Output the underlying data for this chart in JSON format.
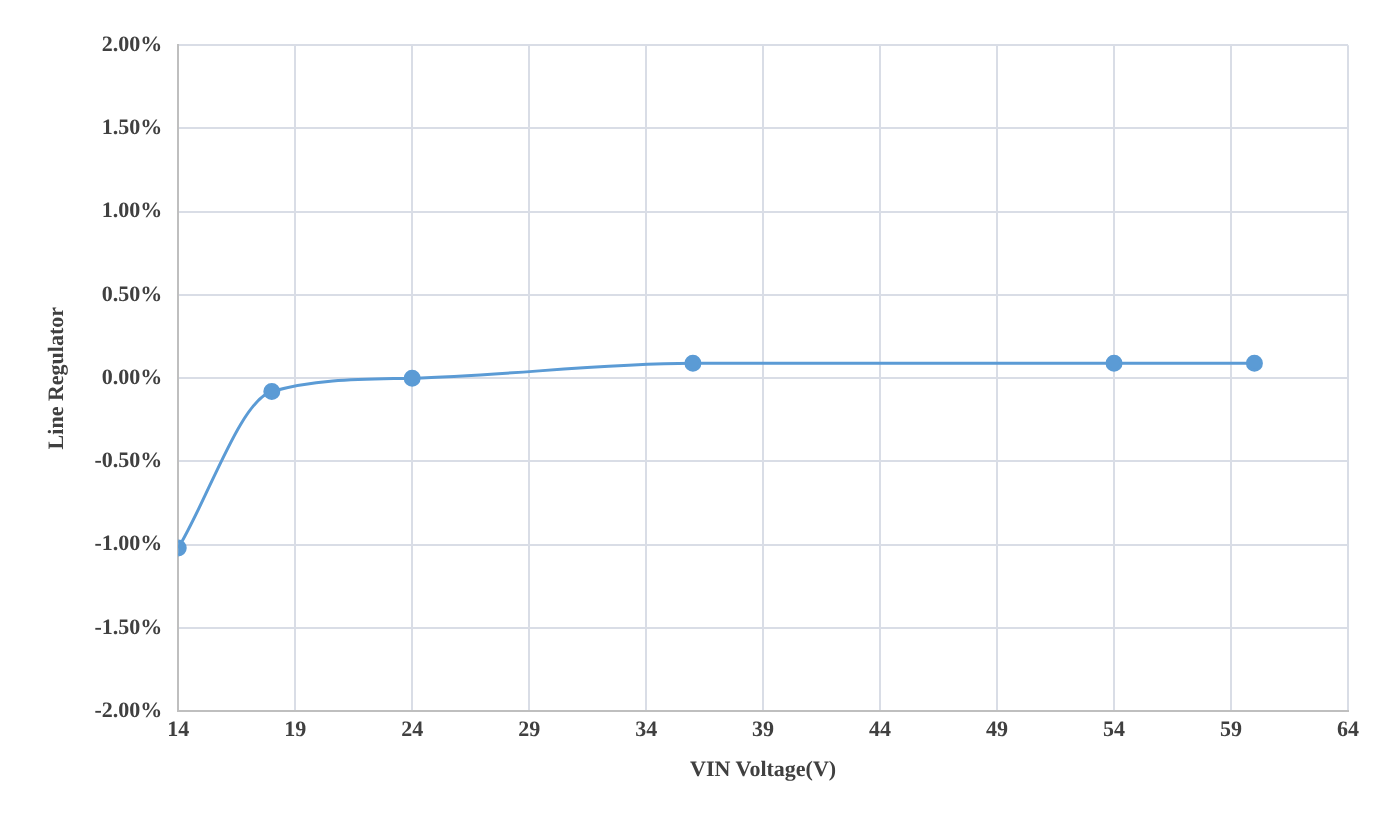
{
  "chart_data": {
    "type": "line",
    "xlabel": "VIN Voltage(V)",
    "ylabel": "Line Regulator",
    "series": [
      {
        "color": "#5b9bd5",
        "x": [
          14,
          18,
          24,
          36,
          54,
          60
        ],
        "values": [
          -1.02,
          -0.08,
          0.0,
          0.09,
          0.09,
          0.09
        ]
      }
    ],
    "xlim": [
      14,
      64
    ],
    "xticks": [
      14,
      19,
      24,
      29,
      34,
      39,
      44,
      49,
      54,
      59,
      64
    ],
    "ylim": [
      -2,
      2
    ],
    "yticks": [
      {
        "value": -2,
        "label": "-2.00%"
      },
      {
        "value": -1.5,
        "label": "-1.50%"
      },
      {
        "value": -1,
        "label": "-1.00%"
      },
      {
        "value": -0.5,
        "label": "-0.50%"
      },
      {
        "value": 0,
        "label": "0.00%"
      },
      {
        "value": 0.5,
        "label": "0.50%"
      },
      {
        "value": 1,
        "label": "1.00%"
      },
      {
        "value": 1.5,
        "label": "1.50%"
      },
      {
        "value": 2,
        "label": "2.00%"
      }
    ],
    "grid": true,
    "marker": "circle",
    "line_style": "solid",
    "legend": false
  }
}
